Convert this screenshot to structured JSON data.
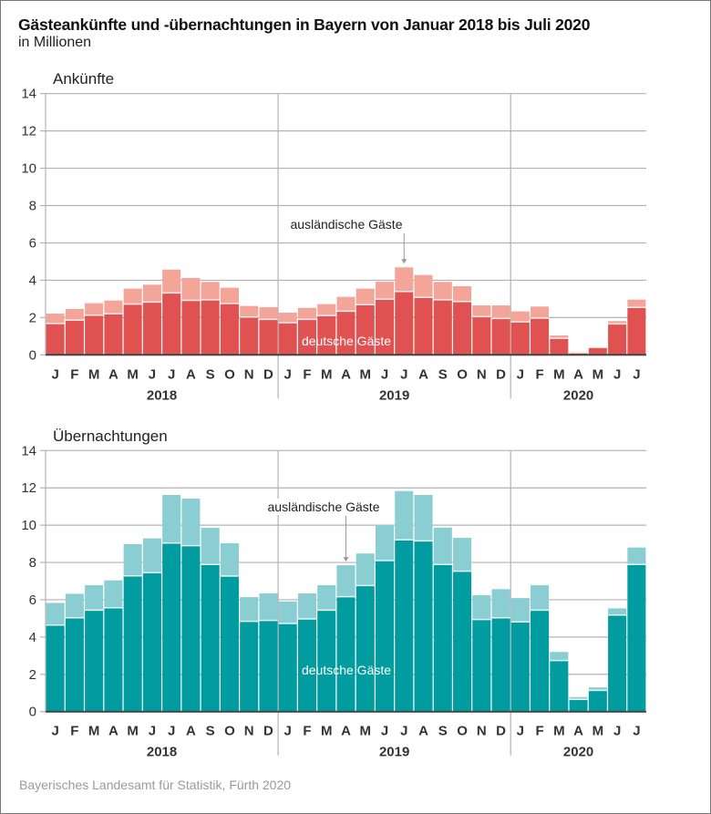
{
  "title": "Gästeankünfte und -übernachtungen in Bayern von Januar 2018 bis Juli 2020",
  "subtitle": "in Millionen",
  "source": "Bayerisches Landesamt für Statistik, Fürth 2020",
  "colors": {
    "arrivals_domestic": "#e05252",
    "arrivals_foreign": "#f4a59a",
    "nights_domestic": "#009ca0",
    "nights_foreign": "#8acdd2",
    "grid": "#b3b3b3",
    "axis": "#444444"
  },
  "chart_data": [
    {
      "type": "bar",
      "stacked": true,
      "title": "Ankünfte",
      "ylabel": "",
      "xlabel": "",
      "ylim": [
        0,
        14
      ],
      "yticks": [
        0,
        2,
        4,
        6,
        8,
        10,
        12,
        14
      ],
      "grid": true,
      "categories": [
        "J",
        "F",
        "M",
        "A",
        "M",
        "J",
        "J",
        "A",
        "S",
        "O",
        "N",
        "D",
        "J",
        "F",
        "M",
        "A",
        "M",
        "J",
        "J",
        "A",
        "S",
        "O",
        "N",
        "D",
        "J",
        "F",
        "M",
        "A",
        "M",
        "J",
        "J"
      ],
      "years": [
        {
          "label": "2018",
          "months": 12
        },
        {
          "label": "2019",
          "months": 12
        },
        {
          "label": "2020",
          "months": 7
        }
      ],
      "series": [
        {
          "name": "deutsche Gäste",
          "values": [
            1.68,
            1.86,
            2.13,
            2.2,
            2.72,
            2.83,
            3.32,
            2.92,
            2.95,
            2.75,
            2.03,
            1.9,
            1.72,
            1.9,
            2.1,
            2.34,
            2.69,
            2.98,
            3.4,
            3.08,
            2.95,
            2.86,
            2.05,
            1.95,
            1.77,
            1.97,
            0.89,
            0.11,
            0.4,
            1.66,
            2.54
          ]
        },
        {
          "name": "ausländische Gäste",
          "values": [
            0.53,
            0.6,
            0.64,
            0.71,
            0.83,
            0.93,
            1.25,
            1.2,
            0.96,
            0.85,
            0.59,
            0.65,
            0.54,
            0.62,
            0.62,
            0.77,
            0.86,
            0.94,
            1.29,
            1.2,
            0.96,
            0.82,
            0.6,
            0.7,
            0.56,
            0.62,
            0.15,
            0.05,
            0.02,
            0.15,
            0.42
          ]
        }
      ],
      "annotations": [
        {
          "text": "ausländische Gäste",
          "points_to_index": 18
        },
        {
          "text": "deutsche Gäste"
        }
      ]
    },
    {
      "type": "bar",
      "stacked": true,
      "title": "Übernachtungen",
      "ylabel": "",
      "xlabel": "",
      "ylim": [
        0,
        14
      ],
      "yticks": [
        0,
        2,
        4,
        6,
        8,
        10,
        12,
        14
      ],
      "grid": true,
      "categories": [
        "J",
        "F",
        "M",
        "A",
        "M",
        "J",
        "J",
        "A",
        "S",
        "O",
        "N",
        "D",
        "J",
        "F",
        "M",
        "A",
        "M",
        "J",
        "J",
        "A",
        "S",
        "O",
        "N",
        "D",
        "J",
        "F",
        "M",
        "A",
        "M",
        "J",
        "J"
      ],
      "years": [
        {
          "label": "2018",
          "months": 12
        },
        {
          "label": "2019",
          "months": 12
        },
        {
          "label": "2020",
          "months": 7
        }
      ],
      "series": [
        {
          "name": "deutsche Gäste",
          "values": [
            4.64,
            5.03,
            5.44,
            5.57,
            7.28,
            7.45,
            9.04,
            8.9,
            7.89,
            7.27,
            4.84,
            4.89,
            4.73,
            4.97,
            5.44,
            6.16,
            6.76,
            8.1,
            9.21,
            9.16,
            7.89,
            7.53,
            4.94,
            5.03,
            4.81,
            5.44,
            2.74,
            0.66,
            1.14,
            5.18,
            7.89
          ]
        },
        {
          "name": "ausländische Gäste",
          "values": [
            1.19,
            1.29,
            1.34,
            1.47,
            1.7,
            1.84,
            2.58,
            2.52,
            1.97,
            1.76,
            1.3,
            1.45,
            1.18,
            1.37,
            1.34,
            1.69,
            1.72,
            1.9,
            2.62,
            2.46,
            1.98,
            1.79,
            1.3,
            1.54,
            1.28,
            1.34,
            0.46,
            0.12,
            0.16,
            0.36,
            0.91
          ]
        }
      ],
      "annotations": [
        {
          "text": "ausländische Gäste",
          "points_to_index": 15
        },
        {
          "text": "deutsche Gäste"
        }
      ]
    }
  ]
}
